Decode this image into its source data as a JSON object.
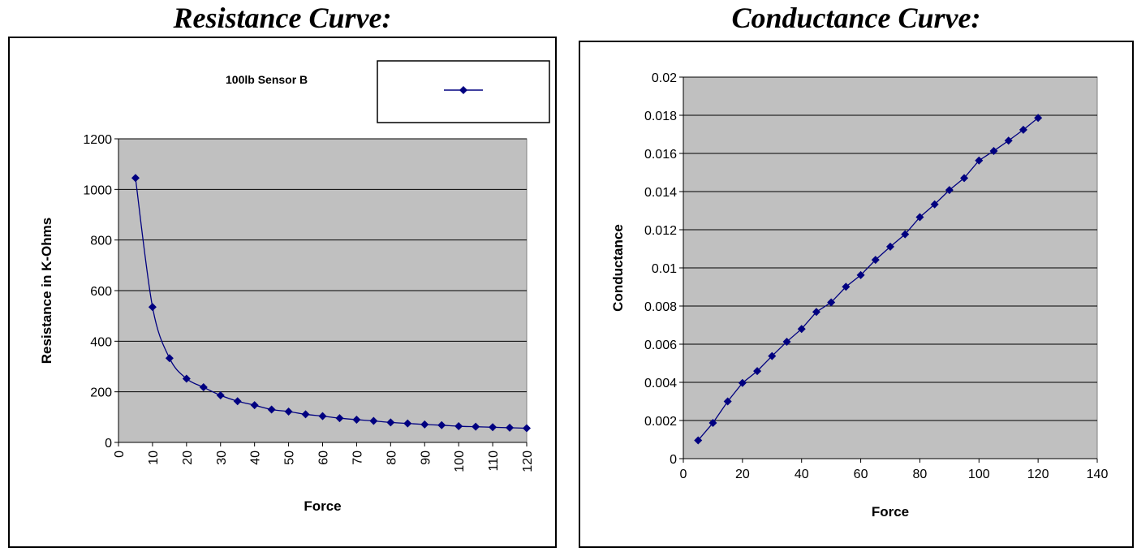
{
  "headings": {
    "left": "Resistance Curve:",
    "right": "Conductance Curve:"
  },
  "colors": {
    "plot_bg": "#c0c0c0",
    "series": "#000080",
    "grid": "#000000"
  },
  "chart_data": [
    {
      "type": "line",
      "title": "",
      "xlabel": "Force",
      "ylabel": "Resistance in K-Ohms",
      "xlim": [
        0,
        120
      ],
      "ylim": [
        0,
        1200
      ],
      "xticks": [
        0,
        10,
        20,
        30,
        40,
        50,
        60,
        70,
        80,
        90,
        100,
        110,
        120
      ],
      "yticks": [
        0,
        200,
        400,
        600,
        800,
        1000,
        1200
      ],
      "grid": true,
      "legend_position": "top-right",
      "legend_label": "100lb Sensor B",
      "series": [
        {
          "name": "100lb Sensor B",
          "x": [
            5,
            10,
            15,
            20,
            25,
            30,
            35,
            40,
            45,
            50,
            55,
            60,
            65,
            70,
            75,
            80,
            85,
            90,
            95,
            100,
            105,
            110,
            115,
            120
          ],
          "y": [
            1045,
            535,
            333,
            252,
            218,
            186,
            163,
            147,
            130,
            122,
            111,
            104,
            96,
            90,
            85,
            79,
            75,
            71,
            68,
            64,
            62,
            60,
            58,
            56
          ]
        }
      ]
    },
    {
      "type": "line",
      "title": "",
      "xlabel": "Force",
      "ylabel": "Conductance",
      "xlim": [
        0,
        140
      ],
      "ylim": [
        0,
        0.02
      ],
      "xticks": [
        0,
        20,
        40,
        60,
        80,
        100,
        120,
        140
      ],
      "yticks": [
        "0",
        "0.002",
        "0.004",
        "0.006",
        "0.008",
        "0.01",
        "0.012",
        "0.014",
        "0.016",
        "0.018",
        "0.02"
      ],
      "grid": true,
      "series": [
        {
          "x": [
            5,
            10,
            15,
            20,
            25,
            30,
            35,
            40,
            45,
            50,
            55,
            60,
            65,
            70,
            75,
            80,
            85,
            90,
            95,
            100,
            105,
            110,
            115,
            120
          ],
          "y": [
            0.00096,
            0.00187,
            0.003,
            0.00397,
            0.00459,
            0.00538,
            0.00613,
            0.0068,
            0.00769,
            0.00819,
            0.00901,
            0.00962,
            0.01042,
            0.01111,
            0.01176,
            0.01266,
            0.01333,
            0.01408,
            0.01471,
            0.01563,
            0.01613,
            0.01667,
            0.01724,
            0.01786
          ]
        }
      ]
    }
  ]
}
